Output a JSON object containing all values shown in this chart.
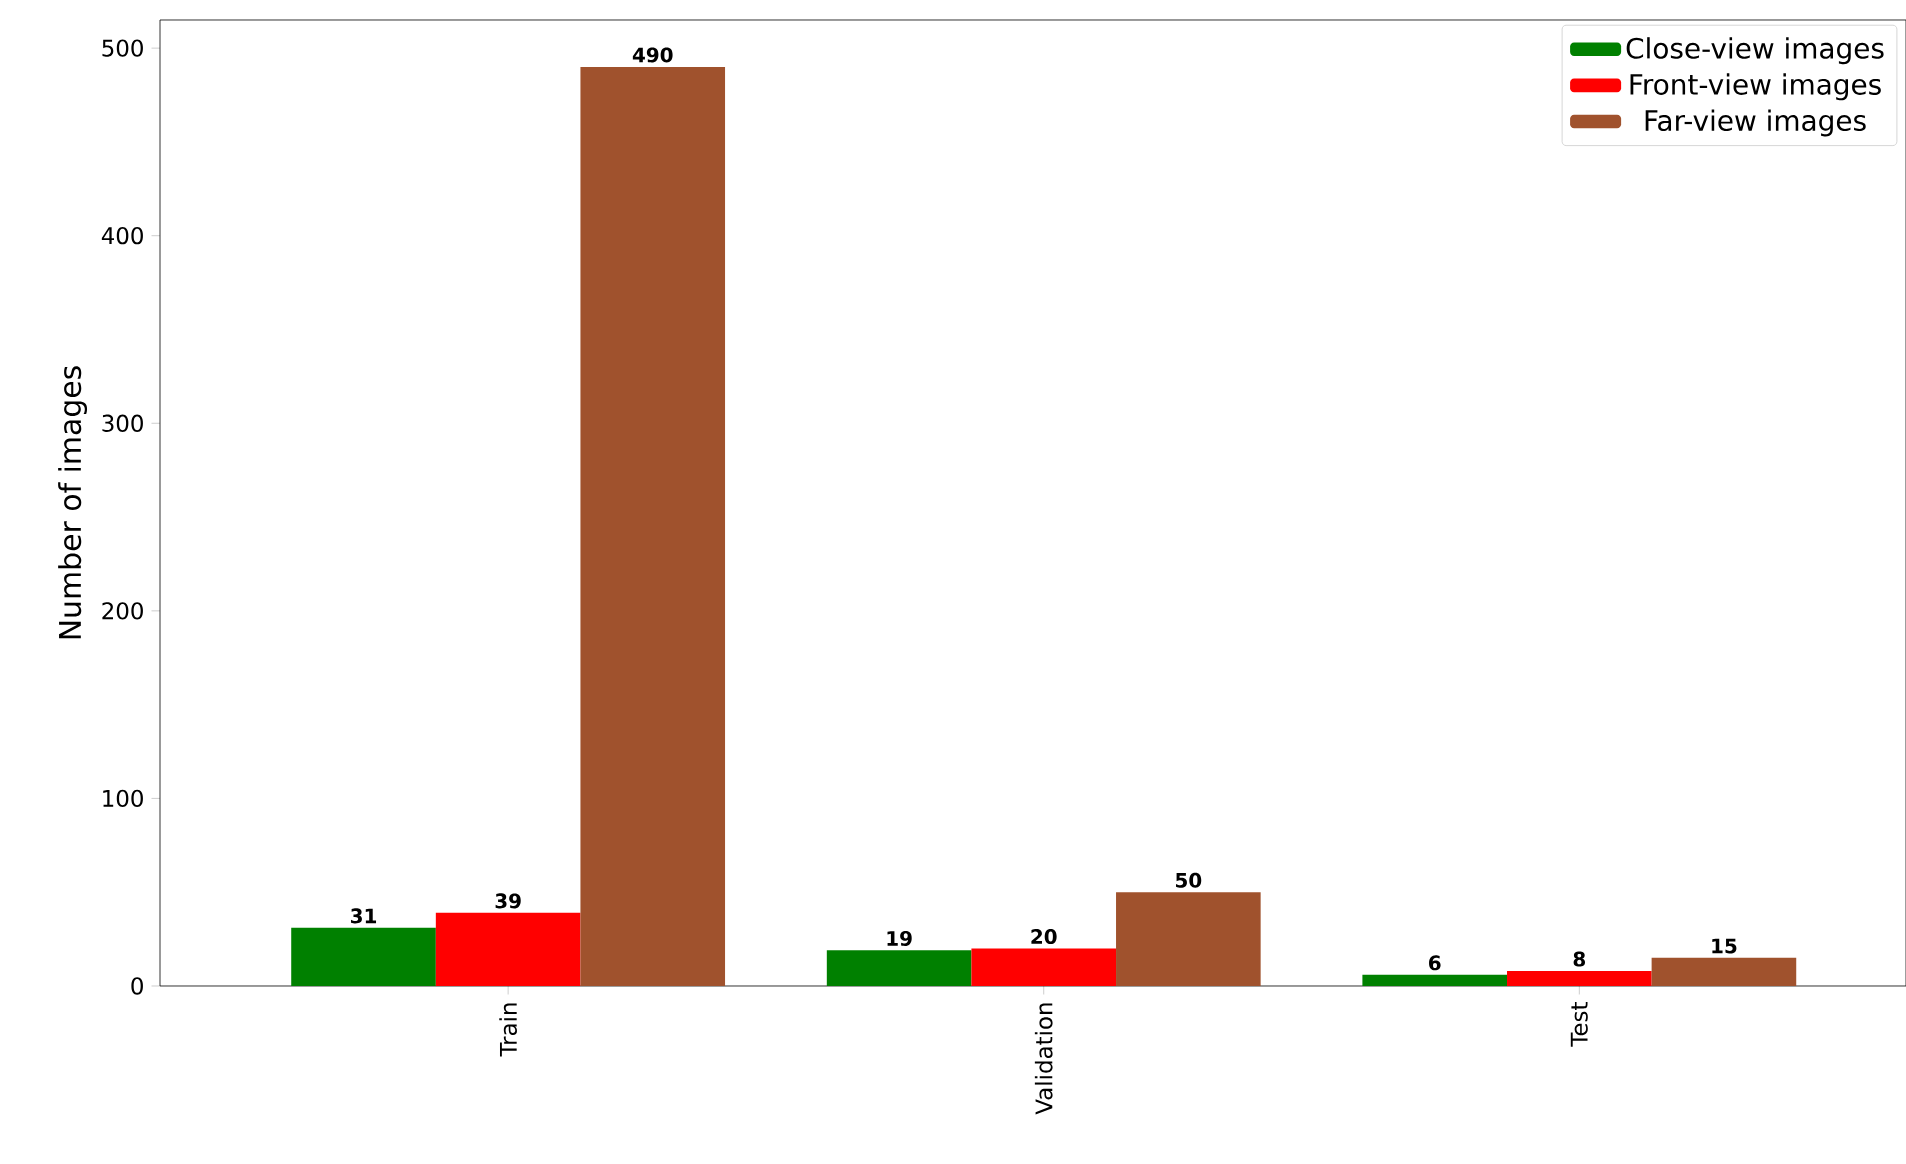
{
  "chart_data": {
    "type": "bar",
    "ylabel": "Number of images",
    "categories": [
      "Train",
      "Validation",
      "Test"
    ],
    "series": [
      {
        "name": "Close-view images",
        "color": "#008000",
        "values": [
          31,
          19,
          6
        ]
      },
      {
        "name": "Front-view images",
        "color": "#ff0000",
        "values": [
          39,
          20,
          8
        ]
      },
      {
        "name": "Far-view images",
        "color": "#a0522d",
        "values": [
          490,
          50,
          15
        ]
      }
    ],
    "ylim": [
      0,
      515
    ],
    "yticks": [
      0,
      100,
      200,
      300,
      400,
      500
    ],
    "data_labels": true,
    "legend": "top right",
    "grid": false
  }
}
